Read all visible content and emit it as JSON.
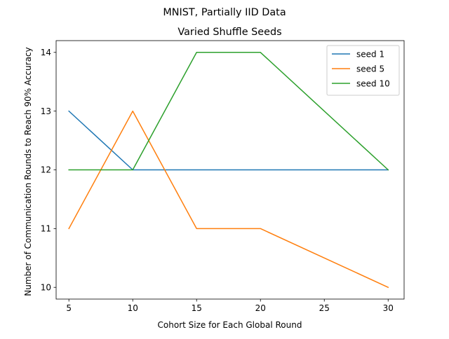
{
  "figure_title": "MNIST, Partially IID Data",
  "chart_data": {
    "type": "line",
    "title": "Varied Shuffle Seeds",
    "xlabel": "Cohort Size for Each Global Round",
    "ylabel": "Number of Communication Rounds to Reach 90% Accuracy",
    "x": [
      5,
      10,
      15,
      20,
      30
    ],
    "xlim": [
      4,
      31.25
    ],
    "ylim": [
      9.8,
      14.2
    ],
    "xticks": [
      5,
      10,
      15,
      20,
      25,
      30
    ],
    "yticks": [
      10,
      11,
      12,
      13,
      14
    ],
    "grid": false,
    "legend_position": "top-right",
    "series": [
      {
        "name": "seed 1",
        "color": "#1f77b4",
        "values": [
          13,
          12,
          12,
          12,
          12
        ]
      },
      {
        "name": "seed 5",
        "color": "#ff7f0e",
        "values": [
          11,
          13,
          11,
          11,
          10
        ]
      },
      {
        "name": "seed 10",
        "color": "#2ca02c",
        "values": [
          12,
          12,
          14,
          14,
          12
        ]
      }
    ]
  }
}
